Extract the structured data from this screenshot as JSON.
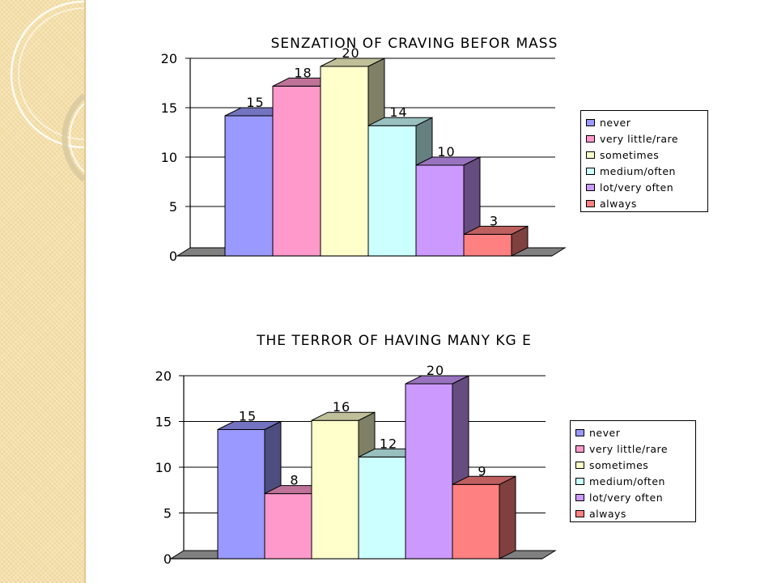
{
  "palette": {
    "never": "#9999ff",
    "very_little_rare": "#ff99cc",
    "sometimes": "#ffffcc",
    "medium_often": "#ccffff",
    "lot_very_often": "#cc99ff",
    "always": "#ff8080"
  },
  "chart_data": [
    {
      "type": "bar",
      "title": "SENZATION OF CRAVING BEFOR MASS",
      "categories": [
        "never",
        "very little/rare",
        "sometimes",
        "medium/often",
        "lot/very often",
        "always"
      ],
      "values": [
        15,
        18,
        20,
        14,
        10,
        3
      ],
      "ylim": [
        0,
        20
      ],
      "yticks": [
        0,
        5,
        10,
        15,
        20
      ],
      "grid": true,
      "legend_position": "right",
      "bar_style": "3d",
      "data_labels": true
    },
    {
      "type": "bar",
      "title": "THE TERROR OF HAVING MANY KG E",
      "categories": [
        "never",
        "very little/rare",
        "sometimes",
        "medium/often",
        "lot/very often",
        "always"
      ],
      "values": [
        15,
        8,
        16,
        12,
        20,
        9
      ],
      "ylim": [
        0,
        20
      ],
      "yticks": [
        0,
        5,
        10,
        15,
        20
      ],
      "grid": true,
      "legend_position": "right",
      "bar_style": "3d",
      "data_labels": true
    }
  ]
}
